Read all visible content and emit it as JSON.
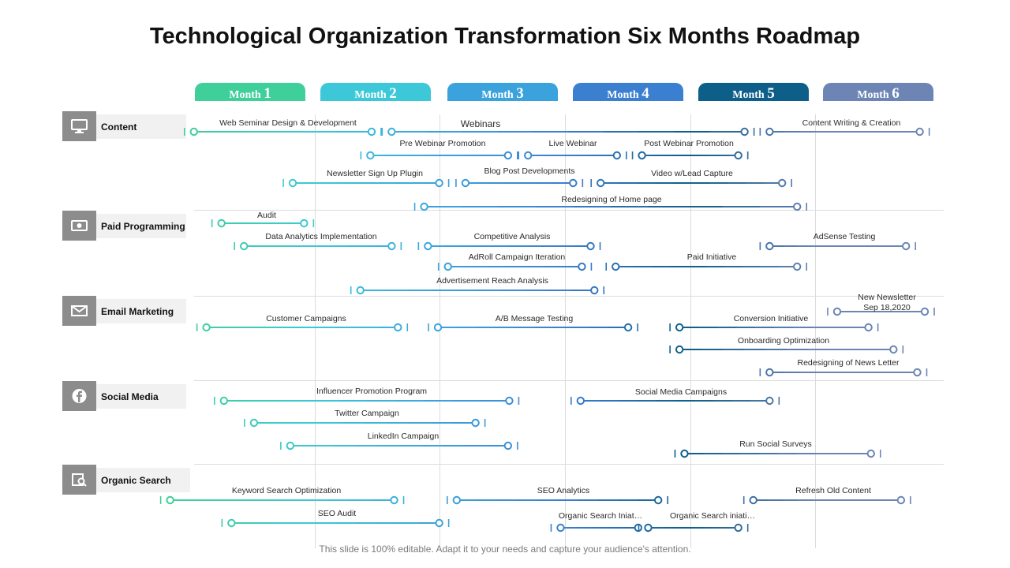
{
  "title": "Technological Organization Transformation Six Months Roadmap",
  "months": [
    {
      "prefix": "Month",
      "num": "1",
      "color": "#3ecf9a"
    },
    {
      "prefix": "Month",
      "num": "2",
      "color": "#3cc8d8"
    },
    {
      "prefix": "Month",
      "num": "3",
      "color": "#3aa2dc"
    },
    {
      "prefix": "Month",
      "num": "4",
      "color": "#3b7fd0"
    },
    {
      "prefix": "Month",
      "num": "5",
      "color": "#0e5e8a"
    },
    {
      "prefix": "Month",
      "num": "6",
      "color": "#6c85b5"
    }
  ],
  "categories": [
    {
      "id": "content",
      "label": "Content",
      "icon": "monitor-icon"
    },
    {
      "id": "paid",
      "label": "Paid Programming",
      "icon": "money-icon"
    },
    {
      "id": "email",
      "label": "Email Marketing",
      "icon": "envelope-icon"
    },
    {
      "id": "social",
      "label": "Social Media",
      "icon": "facebook-icon"
    },
    {
      "id": "organic",
      "label": "Organic Search",
      "icon": "search-document-icon"
    }
  ],
  "tasks": [
    {
      "label": "Web Seminar Design & Development",
      "start": 0.03,
      "end": 1.45
    },
    {
      "label": "Webinars",
      "start": 1.61,
      "end": 4.43
    },
    {
      "label": "Content Writing & Creation",
      "start": 4.63,
      "end": 5.83
    },
    {
      "label": "Pre Webinar Promotion",
      "start": 1.44,
      "end": 2.54
    },
    {
      "label": "Live Webinar",
      "start": 2.7,
      "end": 3.41
    },
    {
      "label": "Post Webinar Promotion",
      "start": 3.61,
      "end": 4.38
    },
    {
      "label": "Newsletter Sign Up Plugin",
      "start": 0.82,
      "end": 1.99
    },
    {
      "label": "Blog Post Developments",
      "start": 2.2,
      "end": 3.06
    },
    {
      "label": "Video w/Lead Capture",
      "start": 3.28,
      "end": 4.73
    },
    {
      "label": "Redesigning of Home page",
      "start": 1.87,
      "end": 4.85
    },
    {
      "label": "Audit",
      "start": 0.25,
      "end": 0.91
    },
    {
      "label": "Data Analytics Implementation",
      "start": 0.43,
      "end": 1.61
    },
    {
      "label": "Competitive Analysis",
      "start": 1.9,
      "end": 3.2
    },
    {
      "label": "AdSense Testing",
      "start": 4.63,
      "end": 5.72
    },
    {
      "label": "AdRoll Campaign  Iteration",
      "start": 2.06,
      "end": 3.13
    },
    {
      "label": "Paid Initiative",
      "start": 3.4,
      "end": 4.85
    },
    {
      "label": "Advertisement Reach Analysis",
      "start": 1.36,
      "end": 3.23
    },
    {
      "label": "Customer Campaigns",
      "start": 0.13,
      "end": 1.66
    },
    {
      "label": "A/B Message Testing",
      "start": 1.98,
      "end": 3.5
    },
    {
      "label": "Conversion Initiative",
      "start": 3.91,
      "end": 5.42
    },
    {
      "label": "New Newsletter\nSep 18,2020",
      "start": 5.17,
      "end": 5.87
    },
    {
      "label": "Onboarding Optimization",
      "start": 3.91,
      "end": 5.62
    },
    {
      "label": "Redesigning of News Letter",
      "start": 4.63,
      "end": 5.81
    },
    {
      "label": "Influencer Promotion  Program",
      "start": 0.27,
      "end": 2.55
    },
    {
      "label": "Social Media Campaigns",
      "start": 3.12,
      "end": 4.63
    },
    {
      "label": "Twitter Campaign",
      "start": 0.51,
      "end": 2.28
    },
    {
      "label": "LinkedIn  Campaign",
      "start": 0.8,
      "end": 2.54
    },
    {
      "label": "Run Social Surveys",
      "start": 3.95,
      "end": 5.44
    },
    {
      "label": "Keyword Search Optimization",
      "start": -0.16,
      "end": 1.63
    },
    {
      "label": "SEO  Analytics",
      "start": 2.13,
      "end": 3.74
    },
    {
      "label": "Refresh Old Content",
      "start": 4.5,
      "end": 5.68
    },
    {
      "label": "SEO  Audit",
      "start": 0.33,
      "end": 1.99
    },
    {
      "label": "Organic Search Iniat…",
      "start": 2.96,
      "end": 3.58
    },
    {
      "label": "Organic Search iniati…",
      "start": 3.66,
      "end": 4.38
    }
  ],
  "footer": "This slide is 100% editable. Adapt it to your needs and capture your audience's attention."
}
